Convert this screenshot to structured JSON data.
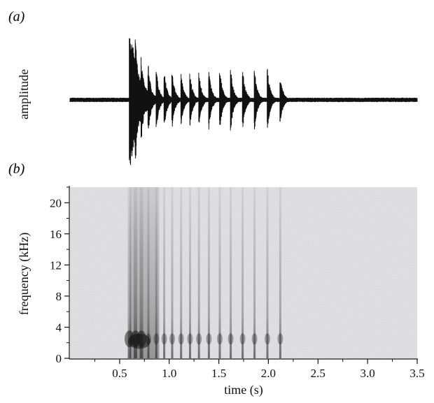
{
  "chart_data": [
    {
      "type": "line",
      "panel_label": "(a)",
      "title": "",
      "xlabel": "",
      "ylabel": "amplitude",
      "xlim": [
        0,
        3.5
      ],
      "grid": false,
      "series": [
        {
          "values_description": "",
          "onset_s": 0.6,
          "end_s": 2.15,
          "pulse_times_s": [
            0.6,
            0.66,
            0.72,
            0.79,
            0.87,
            0.95,
            1.03,
            1.12,
            1.21,
            1.3,
            1.4,
            1.51,
            1.62,
            1.74,
            1.86,
            1.99,
            2.12
          ],
          "pulse_peak_rel": [
            1.0,
            0.85,
            0.55,
            0.45,
            0.4,
            0.38,
            0.36,
            0.34,
            0.34,
            0.35,
            0.38,
            0.4,
            0.4,
            0.4,
            0.4,
            0.4,
            0.3
          ]
        }
      ]
    },
    {
      "type": "heatmap",
      "panel_label": "(b)",
      "title": "",
      "xlabel": "time (s)",
      "ylabel": "frequency (kHz)",
      "xlim": [
        0,
        3.5
      ],
      "ylim": [
        0,
        22
      ],
      "grid": false,
      "x_ticks": [
        0.5,
        1.0,
        1.5,
        2.0,
        2.5,
        3.0,
        3.5
      ],
      "x_tick_labels": [
        "0.5",
        "1.0",
        "1.5",
        "2.0",
        "2.5",
        "3.0",
        "3.5"
      ],
      "y_ticks": [
        0,
        4,
        8,
        12,
        16,
        20
      ],
      "y_tick_labels": [
        "0",
        "4",
        "8",
        "12",
        "16",
        "20"
      ],
      "colors": {
        "ink": "#111111",
        "background": "#e9e9eb"
      }
    }
  ]
}
